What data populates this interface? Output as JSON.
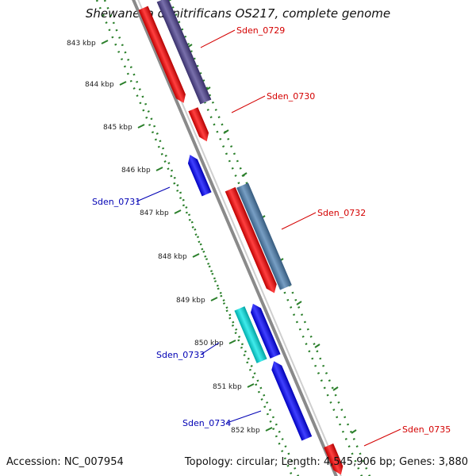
{
  "title": "Shewanella denitrificans OS217, complete genome",
  "footer": {
    "accession": "Accession: NC_007954",
    "summary": "Topology: circular; Length: 4,545,906 bp; Genes: 3,880"
  },
  "colors": {
    "backbone": "#8a8a8a",
    "tick": "#2a7f2a",
    "forward_label": "#d40000",
    "reverse_label": "#0000b4"
  },
  "scale_labels": [
    "843 kbp",
    "844 kbp",
    "845 kbp",
    "846 kbp",
    "847 kbp",
    "848 kbp",
    "849 kbp",
    "850 kbp",
    "851 kbp",
    "852 kbp"
  ],
  "genes": [
    {
      "name": "Sden_0729",
      "strand": "forward",
      "color": "#ff0000"
    },
    {
      "name": "",
      "strand": "forward",
      "color": "#4b3f8f"
    },
    {
      "name": "Sden_0730",
      "strand": "forward",
      "color": "#ff0000"
    },
    {
      "name": "Sden_0731",
      "strand": "reverse",
      "color": "#0000ff"
    },
    {
      "name": "",
      "strand": "forward",
      "color": "#ff0000"
    },
    {
      "name": "Sden_0732",
      "strand": "forward",
      "color": "#4a7eb0"
    },
    {
      "name": "Sden_0733",
      "strand": "reverse",
      "color": "#00e5e5"
    },
    {
      "name": "",
      "strand": "reverse",
      "color": "#0000ff"
    },
    {
      "name": "Sden_0734",
      "strand": "reverse",
      "color": "#0000ff"
    },
    {
      "name": "Sden_0735",
      "strand": "forward",
      "color": "#ff0000"
    }
  ]
}
